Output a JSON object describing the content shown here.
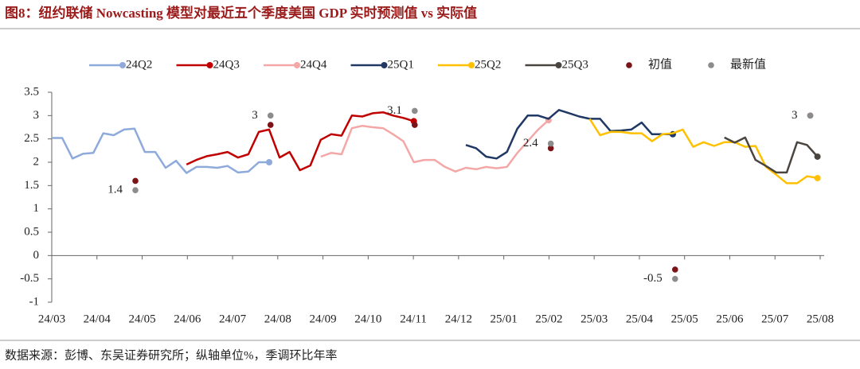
{
  "chart_data": {
    "type": "line",
    "title": "图8：纽约联储 Nowcasting 模型对最近五个季度美国 GDP 实时预测值 vs 实际值",
    "source": "数据来源：彭博、东吴证券研究所；纵轴单位%，季调环比年率",
    "xlim": [
      0,
      17
    ],
    "xticks": [
      {
        "value": 0,
        "label": "24/03"
      },
      {
        "value": 1,
        "label": "24/04"
      },
      {
        "value": 2,
        "label": "24/05"
      },
      {
        "value": 3,
        "label": "24/06"
      },
      {
        "value": 4,
        "label": "24/07"
      },
      {
        "value": 5,
        "label": "24/08"
      },
      {
        "value": 6,
        "label": "24/09"
      },
      {
        "value": 7,
        "label": "24/10"
      },
      {
        "value": 8,
        "label": "24/11"
      },
      {
        "value": 9,
        "label": "24/12"
      },
      {
        "value": 10,
        "label": "25/01"
      },
      {
        "value": 11,
        "label": "25/02"
      },
      {
        "value": 12,
        "label": "25/03"
      },
      {
        "value": 13,
        "label": "25/04"
      },
      {
        "value": 14,
        "label": "25/05"
      },
      {
        "value": 15,
        "label": "25/06"
      },
      {
        "value": 16,
        "label": "25/07"
      },
      {
        "value": 17,
        "label": "25/08"
      }
    ],
    "ylim": [
      -1,
      3.5
    ],
    "yticks": [
      3.5,
      3,
      2.5,
      2,
      1.5,
      1,
      0.5,
      0,
      -0.5,
      -1
    ],
    "grid": false,
    "series": [
      {
        "name": "24Q2",
        "color": "#8eaadb",
        "x": [
          0,
          0.23,
          0.46,
          0.69,
          0.92,
          1.14,
          1.37,
          1.6,
          1.83,
          2.06,
          2.29,
          2.52,
          2.75,
          2.98,
          3.2,
          3.43,
          3.66,
          3.89,
          4.12,
          4.35,
          4.58,
          4.81
        ],
        "values": [
          2.52,
          2.52,
          2.08,
          2.18,
          2.2,
          2.62,
          2.58,
          2.7,
          2.72,
          2.22,
          2.22,
          1.88,
          2.03,
          1.77,
          1.9,
          1.9,
          1.88,
          1.92,
          1.78,
          1.8,
          2.0,
          2.0
        ]
      },
      {
        "name": "24Q3",
        "color": "#c00000",
        "x": [
          2.98,
          3.2,
          3.43,
          3.66,
          3.89,
          4.12,
          4.35,
          4.58,
          4.81,
          5.04,
          5.26,
          5.49,
          5.72,
          5.95,
          6.18,
          6.41,
          6.64,
          6.87,
          7.1,
          7.33,
          7.55,
          7.78,
          8.01
        ],
        "values": [
          1.95,
          2.05,
          2.13,
          2.17,
          2.22,
          2.1,
          2.17,
          2.65,
          2.7,
          2.1,
          2.22,
          1.83,
          1.93,
          2.48,
          2.6,
          2.57,
          3.0,
          2.98,
          3.05,
          3.07,
          3.0,
          2.95,
          2.88
        ]
      },
      {
        "name": "24Q4",
        "color": "#f4a7a7",
        "x": [
          5.95,
          6.18,
          6.41,
          6.64,
          6.87,
          7.1,
          7.33,
          7.55,
          7.78,
          8.01,
          8.24,
          8.47,
          8.7,
          8.93,
          9.16,
          9.39,
          9.61,
          9.84,
          10.07,
          10.3,
          10.53,
          10.76,
          10.99
        ],
        "values": [
          2.12,
          2.2,
          2.17,
          2.73,
          2.78,
          2.75,
          2.73,
          2.6,
          2.45,
          2.0,
          2.05,
          2.05,
          1.9,
          1.8,
          1.88,
          1.85,
          1.9,
          1.87,
          1.9,
          2.2,
          2.45,
          2.7,
          2.9
        ]
      },
      {
        "name": "25Q1",
        "color": "#203864",
        "x": [
          9.16,
          9.39,
          9.61,
          9.84,
          10.07,
          10.3,
          10.53,
          10.76,
          10.99,
          11.22,
          11.45,
          11.67,
          11.9,
          12.13,
          12.36,
          12.59,
          12.82,
          13.05,
          13.28,
          13.51,
          13.74
        ],
        "values": [
          2.37,
          2.3,
          2.12,
          2.08,
          2.22,
          2.72,
          3.0,
          3.0,
          2.93,
          3.12,
          3.05,
          2.98,
          2.93,
          2.93,
          2.67,
          2.68,
          2.7,
          2.85,
          2.6,
          2.6,
          2.6
        ]
      },
      {
        "name": "25Q2",
        "color": "#ffc000",
        "x": [
          11.9,
          12.13,
          12.36,
          12.59,
          12.82,
          13.05,
          13.28,
          13.51,
          13.74,
          13.96,
          14.19,
          14.42,
          14.65,
          14.88,
          15.11,
          15.34,
          15.57,
          15.8,
          16.03,
          16.26,
          16.49,
          16.71,
          16.94
        ],
        "values": [
          2.93,
          2.58,
          2.65,
          2.65,
          2.62,
          2.62,
          2.45,
          2.6,
          2.62,
          2.7,
          2.33,
          2.43,
          2.35,
          2.43,
          2.43,
          2.33,
          2.35,
          1.9,
          1.73,
          1.55,
          1.55,
          1.7,
          1.66
        ]
      },
      {
        "name": "25Q3",
        "color": "#4b4540",
        "x": [
          14.88,
          15.11,
          15.34,
          15.57,
          15.8,
          16.03,
          16.26,
          16.49,
          16.71,
          16.94
        ],
        "values": [
          2.53,
          2.42,
          2.53,
          2.05,
          1.92,
          1.78,
          1.78,
          2.43,
          2.37,
          2.12
        ]
      }
    ],
    "scatter_series": [
      {
        "name": "初值",
        "color": "#7b1416",
        "x": [
          1.85,
          4.84,
          8.03,
          11.04,
          13.79,
          16.78
        ],
        "values": [
          1.6,
          2.8,
          2.8,
          2.3,
          -0.3,
          3.0
        ]
      },
      {
        "name": "最新值",
        "color": "#8c8c8c",
        "x": [
          1.85,
          4.84,
          8.03,
          11.04,
          13.79,
          16.78
        ],
        "values": [
          1.4,
          3,
          3.1,
          2.4,
          -0.5,
          3
        ]
      }
    ]
  }
}
